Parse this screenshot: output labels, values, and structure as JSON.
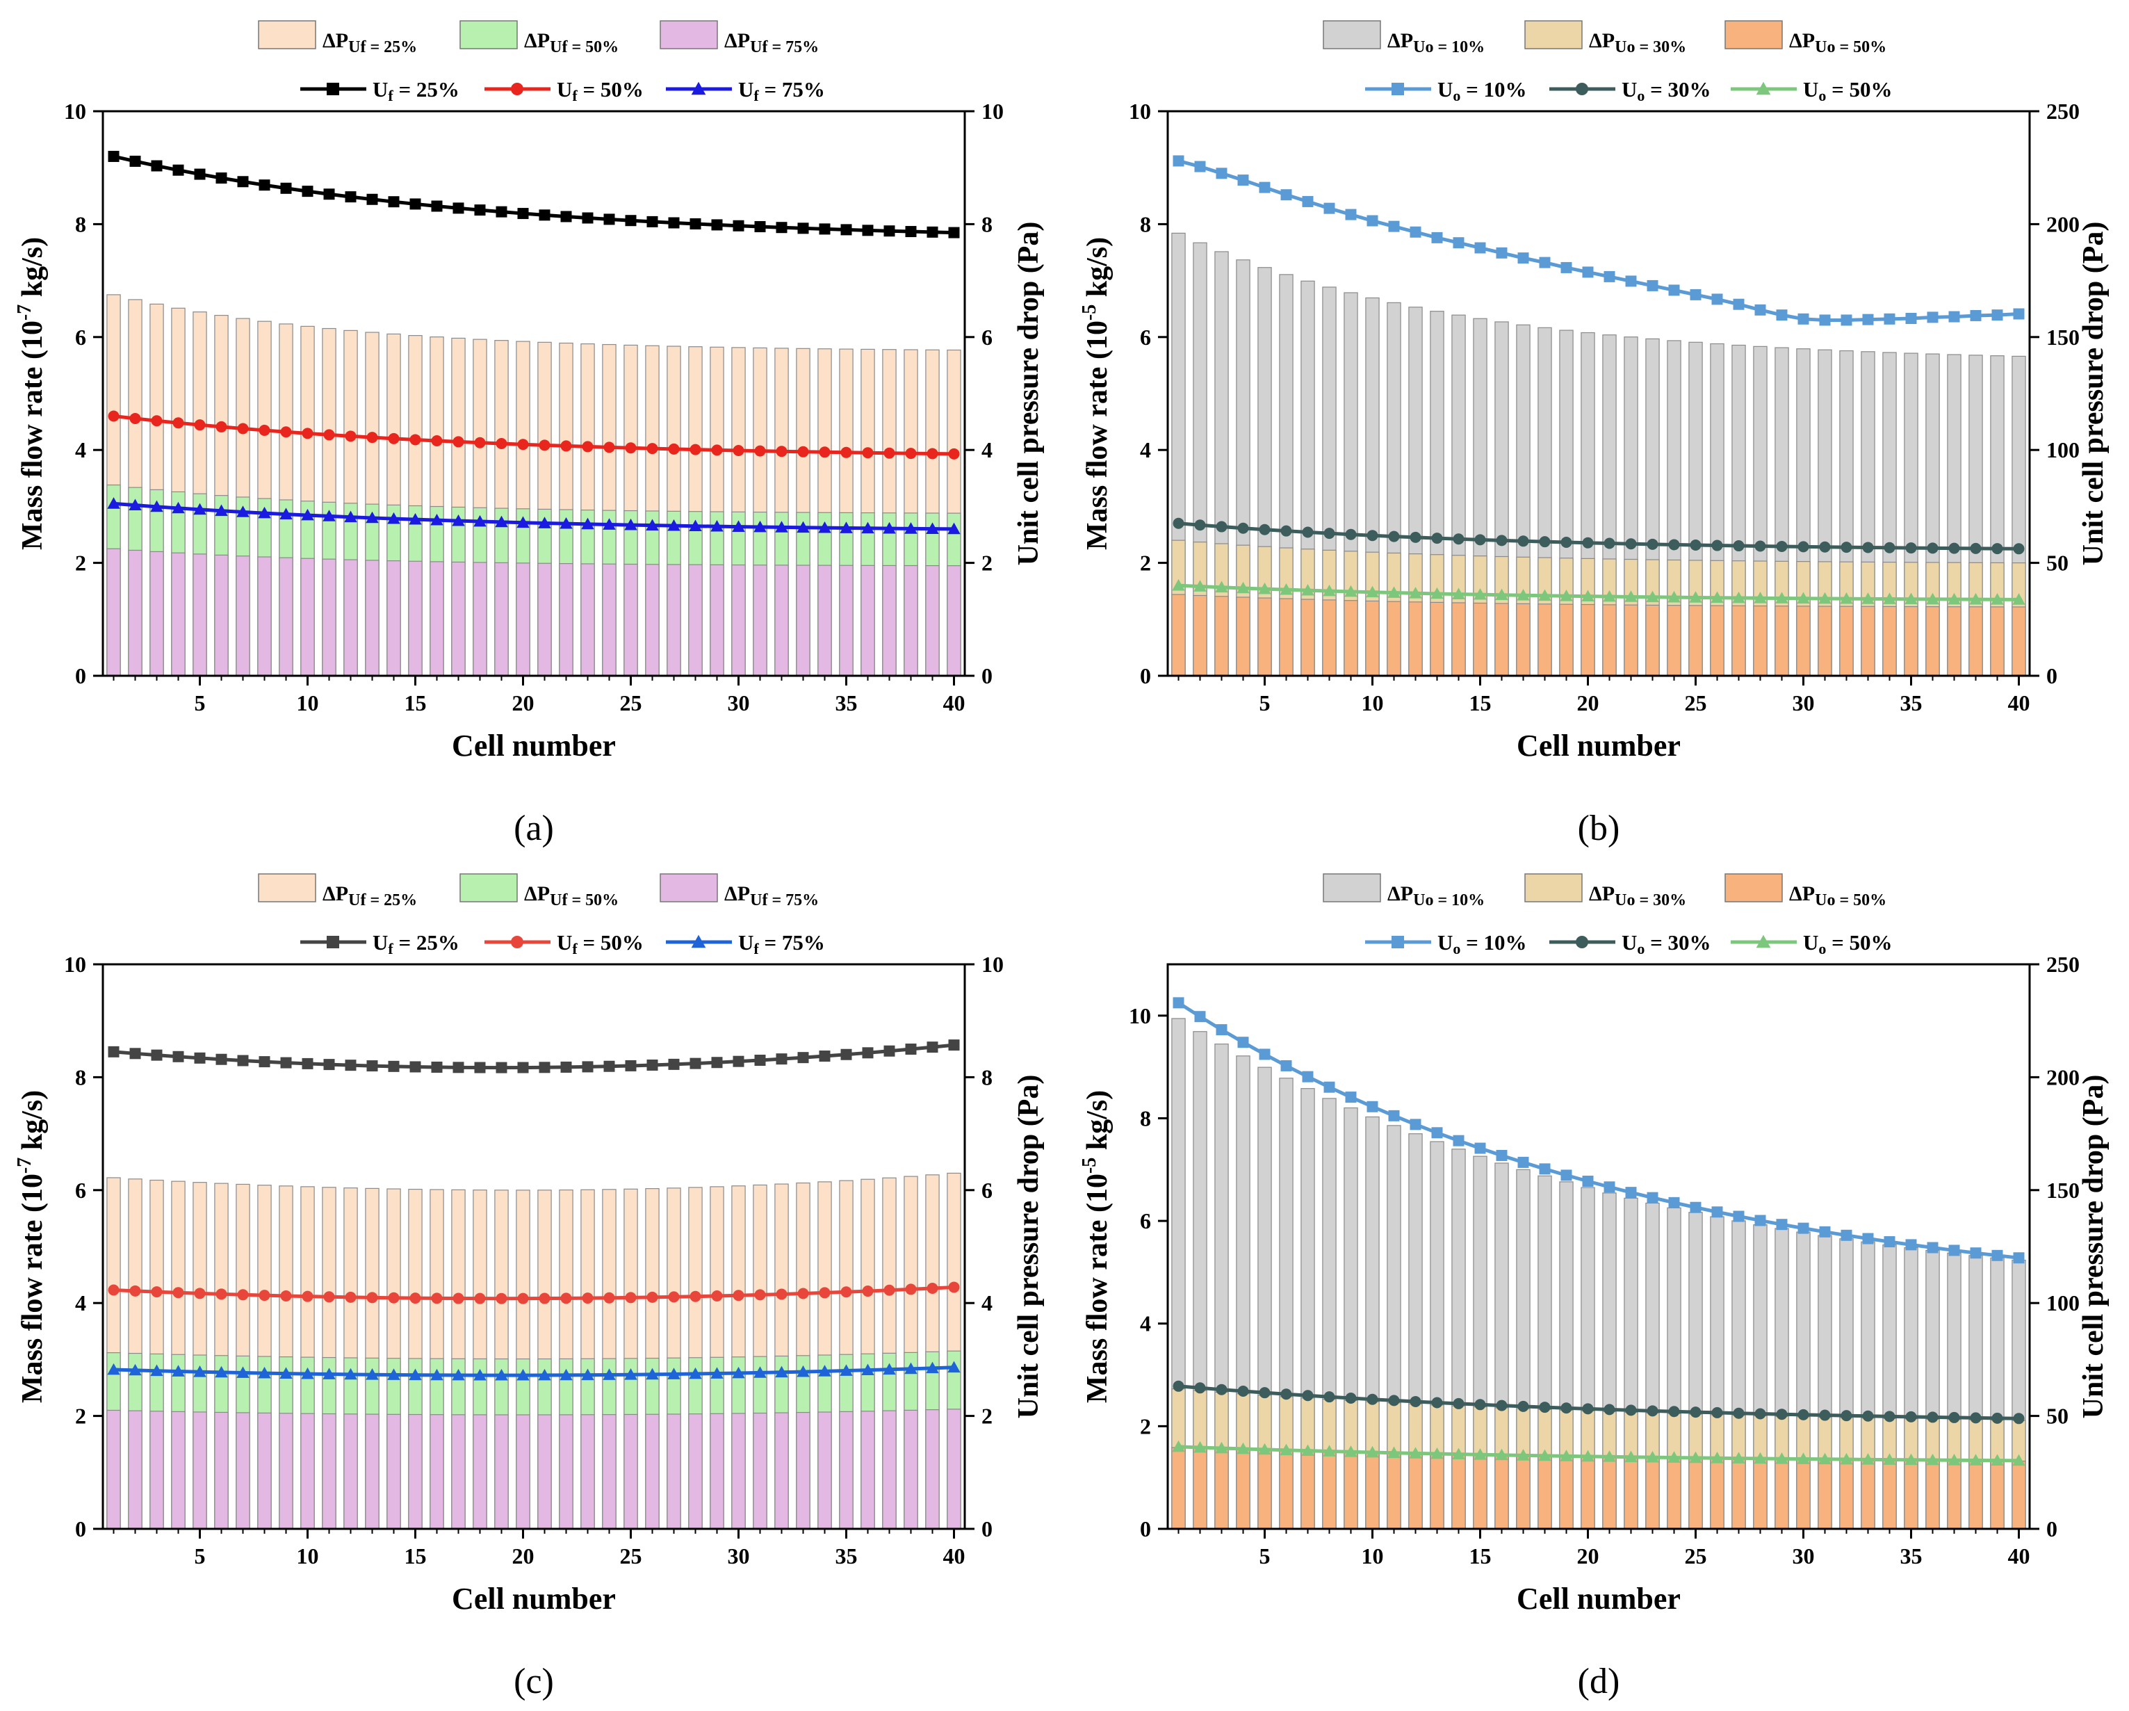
{
  "chart_data": [
    {
      "panel_label": "(a)",
      "type": "bar+line",
      "xlabel": "Cell number",
      "ylabel_left_parts": [
        "Mass flow rate (10",
        "-7",
        " kg/s)"
      ],
      "ylabel_right": "Unit cell pressure drop (Pa)",
      "xlim": [
        0.5,
        40.5
      ],
      "xticks": [
        5,
        10,
        15,
        20,
        25,
        30,
        35,
        40
      ],
      "ylim_left": [
        0,
        10
      ],
      "yticks_left": [
        0,
        2,
        4,
        6,
        8,
        10
      ],
      "ylim_right": [
        0,
        10
      ],
      "yticks_right": [
        0,
        2,
        4,
        6,
        8,
        10
      ],
      "bar_series": [
        {
          "name": "ΔP",
          "sub": "Uf = 25%",
          "color": "#fde0c8",
          "start": 6.75,
          "end": 5.77,
          "shape": "decay",
          "k": 3.5
        },
        {
          "name": "ΔP",
          "sub": "Uf = 50%",
          "color": "#b8f0b0",
          "start": 3.38,
          "end": 2.88,
          "shape": "decay",
          "k": 3.5
        },
        {
          "name": "ΔP",
          "sub": "Uf = 75%",
          "color": "#e3b8e3",
          "start": 2.25,
          "end": 1.95,
          "shape": "decay",
          "k": 3.5
        }
      ],
      "line_series": [
        {
          "name": "U",
          "sub": "f",
          "suffix": " = 25%",
          "color": "#000000",
          "marker": "square",
          "start": 9.2,
          "end": 7.85,
          "shape": "decay",
          "k": 2.3
        },
        {
          "name": "U",
          "sub": "f",
          "suffix": " = 50%",
          "color": "#e8261e",
          "marker": "circle",
          "start": 4.6,
          "end": 3.93,
          "shape": "decay",
          "k": 2.3
        },
        {
          "name": "U",
          "sub": "f",
          "suffix": " = 75%",
          "color": "#1a1ae0",
          "marker": "triangle",
          "start": 3.05,
          "end": 2.6,
          "shape": "decay",
          "k": 2.3
        }
      ]
    },
    {
      "panel_label": "(b)",
      "type": "bar+line",
      "xlabel": "Cell number",
      "ylabel_left_parts": [
        "Mass flow rate (10",
        "-5",
        " kg/s)"
      ],
      "ylabel_right": "Unit cell pressure drop (Pa)",
      "xlim": [
        0.5,
        40.5
      ],
      "xticks": [
        5,
        10,
        15,
        20,
        25,
        30,
        35,
        40
      ],
      "ylim_left": [
        0,
        10
      ],
      "yticks_left": [
        0,
        2,
        4,
        6,
        8,
        10
      ],
      "ylim_right": [
        0,
        250
      ],
      "yticks_right": [
        0,
        50,
        100,
        150,
        200,
        250
      ],
      "bar_series": [
        {
          "name": "ΔP",
          "sub": "Uo = 10%",
          "color": "#d2d2d2",
          "start": 196,
          "end": 141.5,
          "shape": "decay",
          "k": 3.0
        },
        {
          "name": "ΔP",
          "sub": "Uo = 30%",
          "color": "#ecd6a8",
          "start": 60,
          "end": 50,
          "shape": "decay",
          "k": 3.0
        },
        {
          "name": "ΔP",
          "sub": "Uo = 50%",
          "color": "#f7b27e",
          "start": 36,
          "end": 30.5,
          "shape": "decay",
          "k": 3.0
        }
      ],
      "line_series": [
        {
          "name": "U",
          "sub": "o",
          "suffix": " = 10%",
          "color": "#5b9bd5",
          "marker": "square",
          "values": [
            9.12,
            9.02,
            8.9,
            8.78,
            8.65,
            8.52,
            8.4,
            8.28,
            8.17,
            8.06,
            7.96,
            7.86,
            7.76,
            7.67,
            7.58,
            7.49,
            7.4,
            7.32,
            7.23,
            7.15,
            7.07,
            6.99,
            6.91,
            6.83,
            6.75,
            6.67,
            6.58,
            6.48,
            6.39,
            6.32,
            6.3,
            6.3,
            6.31,
            6.32,
            6.33,
            6.35,
            6.36,
            6.38,
            6.39,
            6.41
          ]
        },
        {
          "name": "U",
          "sub": "o",
          "suffix": " = 30%",
          "color": "#3d5c5c",
          "marker": "circle",
          "start": 2.7,
          "end": 2.25,
          "shape": "decay",
          "k": 2.5
        },
        {
          "name": "U",
          "sub": "o",
          "suffix": " = 50%",
          "color": "#7cc77c",
          "marker": "triangle",
          "start": 1.6,
          "end": 1.35,
          "shape": "decay",
          "k": 2.5
        }
      ]
    },
    {
      "panel_label": "(c)",
      "type": "bar+line",
      "xlabel": "Cell number",
      "ylabel_left_parts": [
        "Mass flow rate (10",
        "-7",
        " kg/s)"
      ],
      "ylabel_right": "Unit cell pressure drop (Pa)",
      "xlim": [
        0.5,
        40.5
      ],
      "xticks": [
        5,
        10,
        15,
        20,
        25,
        30,
        35,
        40
      ],
      "ylim_left": [
        0,
        10
      ],
      "yticks_left": [
        0,
        2,
        4,
        6,
        8,
        10
      ],
      "ylim_right": [
        0,
        10
      ],
      "yticks_right": [
        0,
        2,
        4,
        6,
        8,
        10
      ],
      "bar_series": [
        {
          "name": "ΔP",
          "sub": "Uf = 25%",
          "color": "#fde0c8",
          "start": 6.22,
          "end": 6.3,
          "shape": "parabola",
          "min": 6.0,
          "vertex": 20
        },
        {
          "name": "ΔP",
          "sub": "Uf = 50%",
          "color": "#b8f0b0",
          "start": 3.12,
          "end": 3.15,
          "shape": "parabola",
          "min": 3.01,
          "vertex": 20
        },
        {
          "name": "ΔP",
          "sub": "Uf = 75%",
          "color": "#e3b8e3",
          "start": 2.1,
          "end": 2.12,
          "shape": "parabola",
          "min": 2.02,
          "vertex": 20
        }
      ],
      "line_series": [
        {
          "name": "U",
          "sub": "f",
          "suffix": " = 25%",
          "color": "#444444",
          "marker": "square",
          "start": 8.45,
          "end": 8.57,
          "shape": "parabola",
          "min": 8.17,
          "vertex": 19
        },
        {
          "name": "U",
          "sub": "f",
          "suffix": " = 50%",
          "color": "#e8463a",
          "marker": "circle",
          "start": 4.23,
          "end": 4.28,
          "shape": "parabola",
          "min": 4.08,
          "vertex": 19
        },
        {
          "name": "U",
          "sub": "f",
          "suffix": " = 75%",
          "color": "#1f63d8",
          "marker": "triangle",
          "start": 2.82,
          "end": 2.86,
          "shape": "parabola",
          "min": 2.72,
          "vertex": 19
        }
      ]
    },
    {
      "panel_label": "(d)",
      "type": "bar+line",
      "xlabel": "Cell number",
      "ylabel_left_parts": [
        "Mass flow rate (10",
        "-5",
        " kg/s)"
      ],
      "ylabel_right": "Unit cell pressure drop (Pa)",
      "xlim": [
        0.5,
        40.5
      ],
      "xticks": [
        5,
        10,
        15,
        20,
        25,
        30,
        35,
        40
      ],
      "ylim_left": [
        0,
        11
      ],
      "yticks_left": [
        0,
        2,
        4,
        6,
        8,
        10
      ],
      "ylim_right": [
        0,
        250
      ],
      "yticks_right": [
        0,
        50,
        100,
        150,
        200,
        250
      ],
      "bar_series": [
        {
          "name": "ΔP",
          "sub": "Uo = 10%",
          "color": "#d2d2d2",
          "start": 226,
          "end": 119,
          "shape": "decay",
          "k": 1.8
        },
        {
          "name": "ΔP",
          "sub": "Uo = 30%",
          "color": "#ecd6a8",
          "start": 62,
          "end": 48,
          "shape": "decay",
          "k": 1.8
        },
        {
          "name": "ΔP",
          "sub": "Uo = 50%",
          "color": "#f7b27e",
          "start": 36,
          "end": 30,
          "shape": "decay",
          "k": 1.8
        }
      ],
      "line_series": [
        {
          "name": "U",
          "sub": "o",
          "suffix": " = 10%",
          "color": "#5b9bd5",
          "marker": "square",
          "start": 10.25,
          "end": 5.28,
          "shape": "decay",
          "k": 1.8
        },
        {
          "name": "U",
          "sub": "o",
          "suffix": " = 30%",
          "color": "#3d5c5c",
          "marker": "circle",
          "start": 2.78,
          "end": 2.15,
          "shape": "decay",
          "k": 1.8
        },
        {
          "name": "U",
          "sub": "o",
          "suffix": " = 50%",
          "color": "#7cc77c",
          "marker": "triangle",
          "start": 1.6,
          "end": 1.33,
          "shape": "decay",
          "k": 1.8
        }
      ]
    }
  ]
}
